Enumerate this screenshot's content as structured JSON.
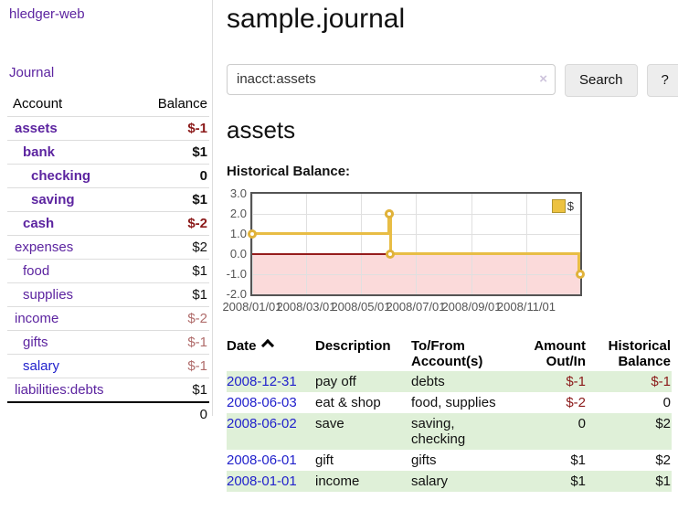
{
  "sidebar": {
    "app_title": "hledger-web",
    "nav_journal": "Journal",
    "accounts": {
      "headers": {
        "account": "Account",
        "balance": "Balance"
      },
      "rows": [
        {
          "name": "assets",
          "depth": 0,
          "bold": true,
          "balance": "$-1",
          "negative": true,
          "blue": false
        },
        {
          "name": "bank",
          "depth": 1,
          "bold": true,
          "balance": "$1",
          "negative": false,
          "blue": false
        },
        {
          "name": "checking",
          "depth": 2,
          "bold": true,
          "balance": "0",
          "negative": false,
          "blue": false
        },
        {
          "name": "saving",
          "depth": 2,
          "bold": true,
          "balance": "$1",
          "negative": false,
          "blue": false
        },
        {
          "name": "cash",
          "depth": 1,
          "bold": true,
          "balance": "$-2",
          "negative": true,
          "blue": false
        },
        {
          "name": "expenses",
          "depth": 0,
          "bold": false,
          "balance": "$2",
          "negative": false,
          "blue": false
        },
        {
          "name": "food",
          "depth": 1,
          "bold": false,
          "balance": "$1",
          "negative": false,
          "blue": false
        },
        {
          "name": "supplies",
          "depth": 1,
          "bold": false,
          "balance": "$1",
          "negative": false,
          "blue": false
        },
        {
          "name": "income",
          "depth": 0,
          "bold": false,
          "balance": "$-2",
          "negative": true,
          "blue": false
        },
        {
          "name": "gifts",
          "depth": 1,
          "bold": false,
          "balance": "$-1",
          "negative": true,
          "blue": false
        },
        {
          "name": "salary",
          "depth": 1,
          "bold": false,
          "balance": "$-1",
          "negative": true,
          "blue": true
        },
        {
          "name": "liabilities:debts",
          "depth": 0,
          "bold": false,
          "balance": "$1",
          "negative": false,
          "blue": false
        }
      ],
      "total": "0"
    }
  },
  "header": {
    "title": "sample.journal"
  },
  "search": {
    "value": "inacct:assets",
    "clear_icon": "×",
    "search_label": "Search",
    "help_label": "?"
  },
  "section": {
    "title": "assets",
    "chart_title": "Historical Balance:"
  },
  "chart_data": {
    "type": "line",
    "step": true,
    "title": "Historical Balance:",
    "legend": "$",
    "legend_position": "top-right",
    "grid": true,
    "x_domain": [
      "2008-01-01",
      "2008-12-31"
    ],
    "ylim": [
      -2,
      3
    ],
    "y_ticks": [
      3.0,
      2.0,
      1.0,
      0.0,
      -1.0,
      -2.0
    ],
    "x_ticks": [
      "2008/01/01",
      "2008/03/01",
      "2008/05/01",
      "2008/07/01",
      "2008/09/01",
      "2008/11/01"
    ],
    "series": [
      {
        "name": "$",
        "color": "#edc240",
        "points": [
          [
            "2008-01-01",
            1
          ],
          [
            "2008-06-01",
            2
          ],
          [
            "2008-06-02",
            2
          ],
          [
            "2008-06-03",
            0
          ],
          [
            "2008-12-31",
            -1
          ]
        ]
      }
    ],
    "negative_region_fill": "#fbdada",
    "zero_line_color": "#961c1c"
  },
  "register": {
    "headers": {
      "date": "Date",
      "description": "Description",
      "account": "To/From Account(s)",
      "amount": "Amount Out/In",
      "balance": "Historical Balance"
    },
    "rows": [
      {
        "date": "2008-12-31",
        "description": "pay off",
        "accounts": "debts",
        "amount": "$-1",
        "amount_negative": true,
        "balance": "$-1",
        "balance_negative": true
      },
      {
        "date": "2008-06-03",
        "description": "eat & shop",
        "accounts": "food, supplies",
        "amount": "$-2",
        "amount_negative": true,
        "balance": "0",
        "balance_negative": false
      },
      {
        "date": "2008-06-02",
        "description": "save",
        "accounts": "saving, checking",
        "amount": "0",
        "amount_negative": false,
        "balance": "$2",
        "balance_negative": false
      },
      {
        "date": "2008-06-01",
        "description": "gift",
        "accounts": "gifts",
        "amount": "$1",
        "amount_negative": false,
        "balance": "$2",
        "balance_negative": false
      },
      {
        "date": "2008-01-01",
        "description": "income",
        "accounts": "salary",
        "amount": "$1",
        "amount_negative": false,
        "balance": "$1",
        "balance_negative": false
      }
    ]
  },
  "colors": {
    "link_purple": "#5c24a0",
    "link_blue": "#2222cc",
    "negative_strong": "#8b1a1a",
    "negative_muted": "#b06c6b",
    "row_stripe_green": "#dff0d8",
    "chart_line_gold": "#edc240",
    "chart_negative_pink": "#fbdada",
    "chart_zero_red": "#961c1c",
    "chart_grid": "#e0e0e0",
    "chart_axis_text": "#545454"
  }
}
